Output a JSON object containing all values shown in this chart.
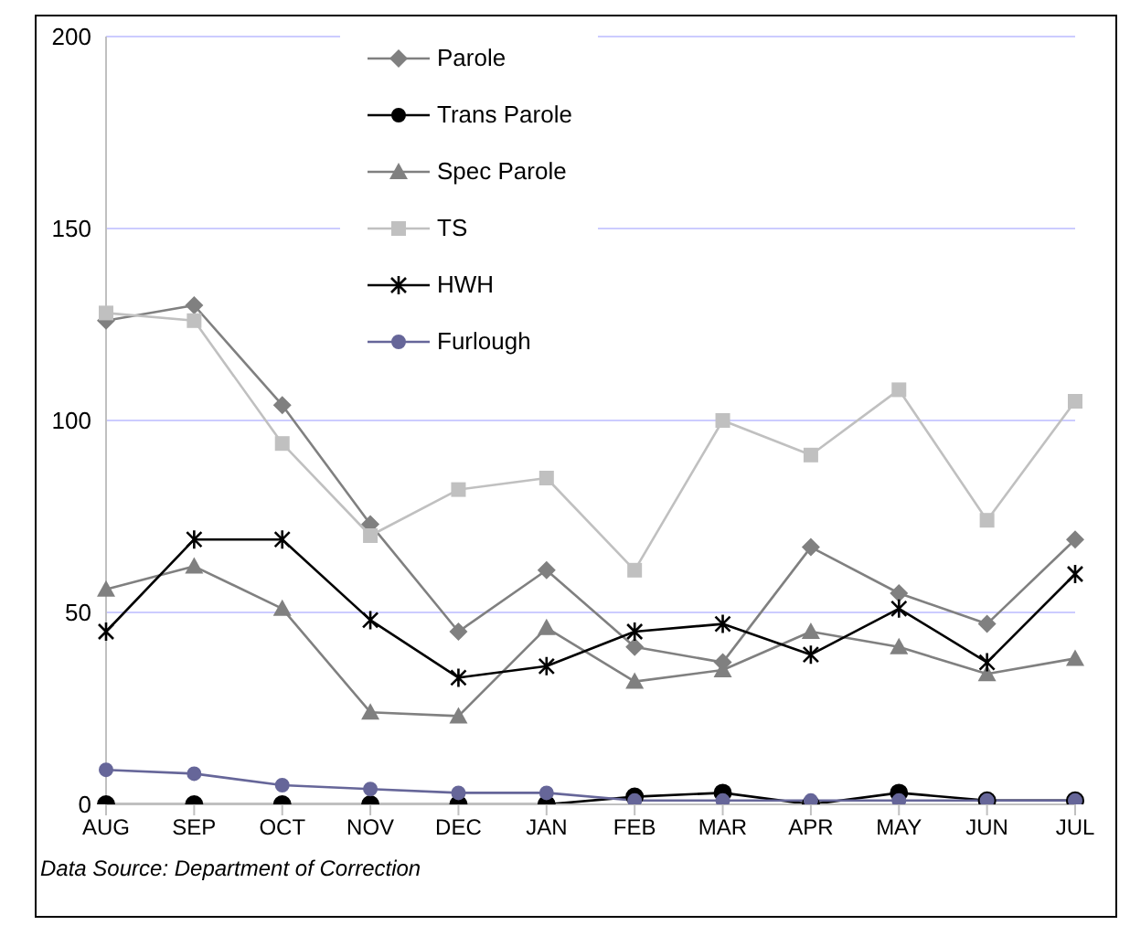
{
  "chart_data": {
    "type": "line",
    "categories": [
      "AUG",
      "SEP",
      "OCT",
      "NOV",
      "DEC",
      "JAN",
      "FEB",
      "MAR",
      "APR",
      "MAY",
      "JUN",
      "JUL"
    ],
    "series": [
      {
        "name": "Parole",
        "color": "#808080",
        "marker": "diamond",
        "values": [
          126,
          130,
          104,
          73,
          45,
          61,
          41,
          37,
          67,
          55,
          47,
          69
        ]
      },
      {
        "name": "Trans Parole",
        "color": "#000000",
        "marker": "circle",
        "values": [
          0,
          0,
          0,
          0,
          0,
          0,
          2,
          3,
          0,
          3,
          1,
          1
        ]
      },
      {
        "name": "Spec Parole",
        "color": "#808080",
        "marker": "triangle",
        "values": [
          56,
          62,
          51,
          24,
          23,
          46,
          32,
          35,
          45,
          41,
          34,
          38
        ]
      },
      {
        "name": "TS",
        "color": "#c0c0c0",
        "marker": "square",
        "values": [
          128,
          126,
          94,
          70,
          82,
          85,
          61,
          100,
          91,
          108,
          74,
          105
        ]
      },
      {
        "name": "HWH",
        "color": "#000000",
        "marker": "cross",
        "values": [
          45,
          69,
          69,
          48,
          33,
          36,
          45,
          47,
          39,
          51,
          37,
          60
        ]
      },
      {
        "name": "Furlough",
        "color": "#666699",
        "marker": "circle",
        "values": [
          9,
          8,
          5,
          4,
          3,
          3,
          1,
          1,
          1,
          1,
          1,
          1
        ]
      }
    ],
    "ylim": [
      0,
      200
    ],
    "yticks": [
      0,
      50,
      100,
      150,
      200
    ],
    "grid": "y",
    "legend": "top",
    "annotations": [
      "Data Source: Department of Correction"
    ]
  }
}
